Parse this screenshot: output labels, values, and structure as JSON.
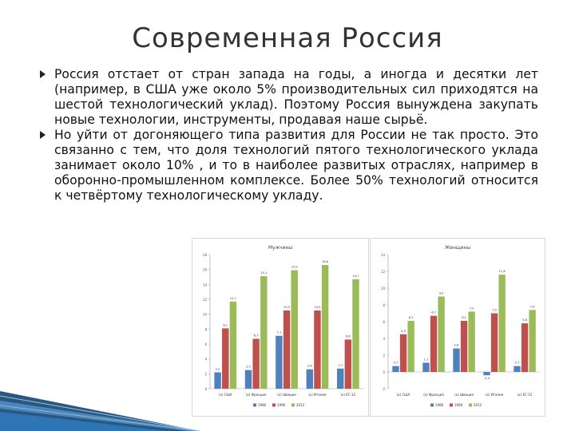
{
  "slide": {
    "title": "Современная Россия",
    "bullets": [
      "Россия отстает от стран запада на годы, а иногда и десятки лет (например, в США уже около 5% производительных сил приходятся на шестой технологический уклад). Поэтому Россия вынуждена закупать новые технологии, инструменты, продавая наше сырьё.",
      "Но уйти от догоняющего типа развития для России не так просто. Это связанно с тем, что доля технологий пятого технологического уклада занимает около 10% , и то в наиболее развитых отраслях, например в оборонно-промышленном комплексе. Более 50% технологий относится к четвёртому технологическому укладу."
    ]
  },
  "colors": {
    "series1": "#4f81bd",
    "series2": "#c0504d",
    "series3": "#9bbb59",
    "deco": "#1f4e79"
  },
  "chart_data": [
    {
      "type": "bar",
      "title": "Мужчины",
      "ylim": [
        0,
        18
      ],
      "yticks": [
        "0",
        "2",
        "4",
        "6",
        "8",
        "10",
        "12",
        "14",
        "16",
        "18"
      ],
      "categories": [
        "(х) США",
        "(х) Франция",
        "(х) Швеция",
        "(х) Италия",
        "(х) ЕС-15"
      ],
      "series": [
        {
          "values": [
            2.2,
            2.5,
            7.1,
            2.6,
            2.7
          ]
        },
        {
          "values": [
            8.1,
            6.7,
            10.5,
            10.5,
            6.6
          ]
        },
        {
          "values": [
            11.7,
            15.1,
            15.9,
            16.6,
            14.7
          ]
        }
      ],
      "data_labels": [
        [
          "2,2",
          "2,5",
          "7,1",
          "2,6",
          "2,7"
        ],
        [
          "8,1",
          "6,7",
          "10,5",
          "10,5",
          "6,6"
        ],
        [
          "11,7",
          "15,1",
          "15,9",
          "16,6",
          "14,7"
        ]
      ],
      "legend": [
        "1980",
        "1990",
        "2012"
      ],
      "legend_position": "bottom",
      "grid": false
    },
    {
      "type": "bar",
      "title": "Женщины",
      "ylim": [
        -2,
        14
      ],
      "yticks": [
        "-2",
        "0",
        "2",
        "4",
        "6",
        "8",
        "10",
        "12",
        "14"
      ],
      "categories": [
        "(х) США",
        "(х) Франция",
        "(х) Швеция",
        "(х) Италия",
        "(х) ЕС-15"
      ],
      "series": [
        {
          "values": [
            0.7,
            1.1,
            2.8,
            -0.4,
            0.7
          ]
        },
        {
          "values": [
            4.5,
            6.7,
            6.1,
            7.0,
            5.8
          ]
        },
        {
          "values": [
            6.1,
            9.0,
            7.2,
            11.6,
            7.4
          ]
        }
      ],
      "data_labels": [
        [
          "0,7",
          "1,1",
          "2,8",
          "-0,4",
          "0,7"
        ],
        [
          "4,5",
          "6,7",
          "6,1",
          "7,0",
          "5,8"
        ],
        [
          "6,1",
          "9,0",
          "7,2",
          "11,6",
          "7,4"
        ]
      ],
      "legend": [
        "1980",
        "1990",
        "2012"
      ],
      "legend_position": "bottom",
      "grid": false
    }
  ]
}
